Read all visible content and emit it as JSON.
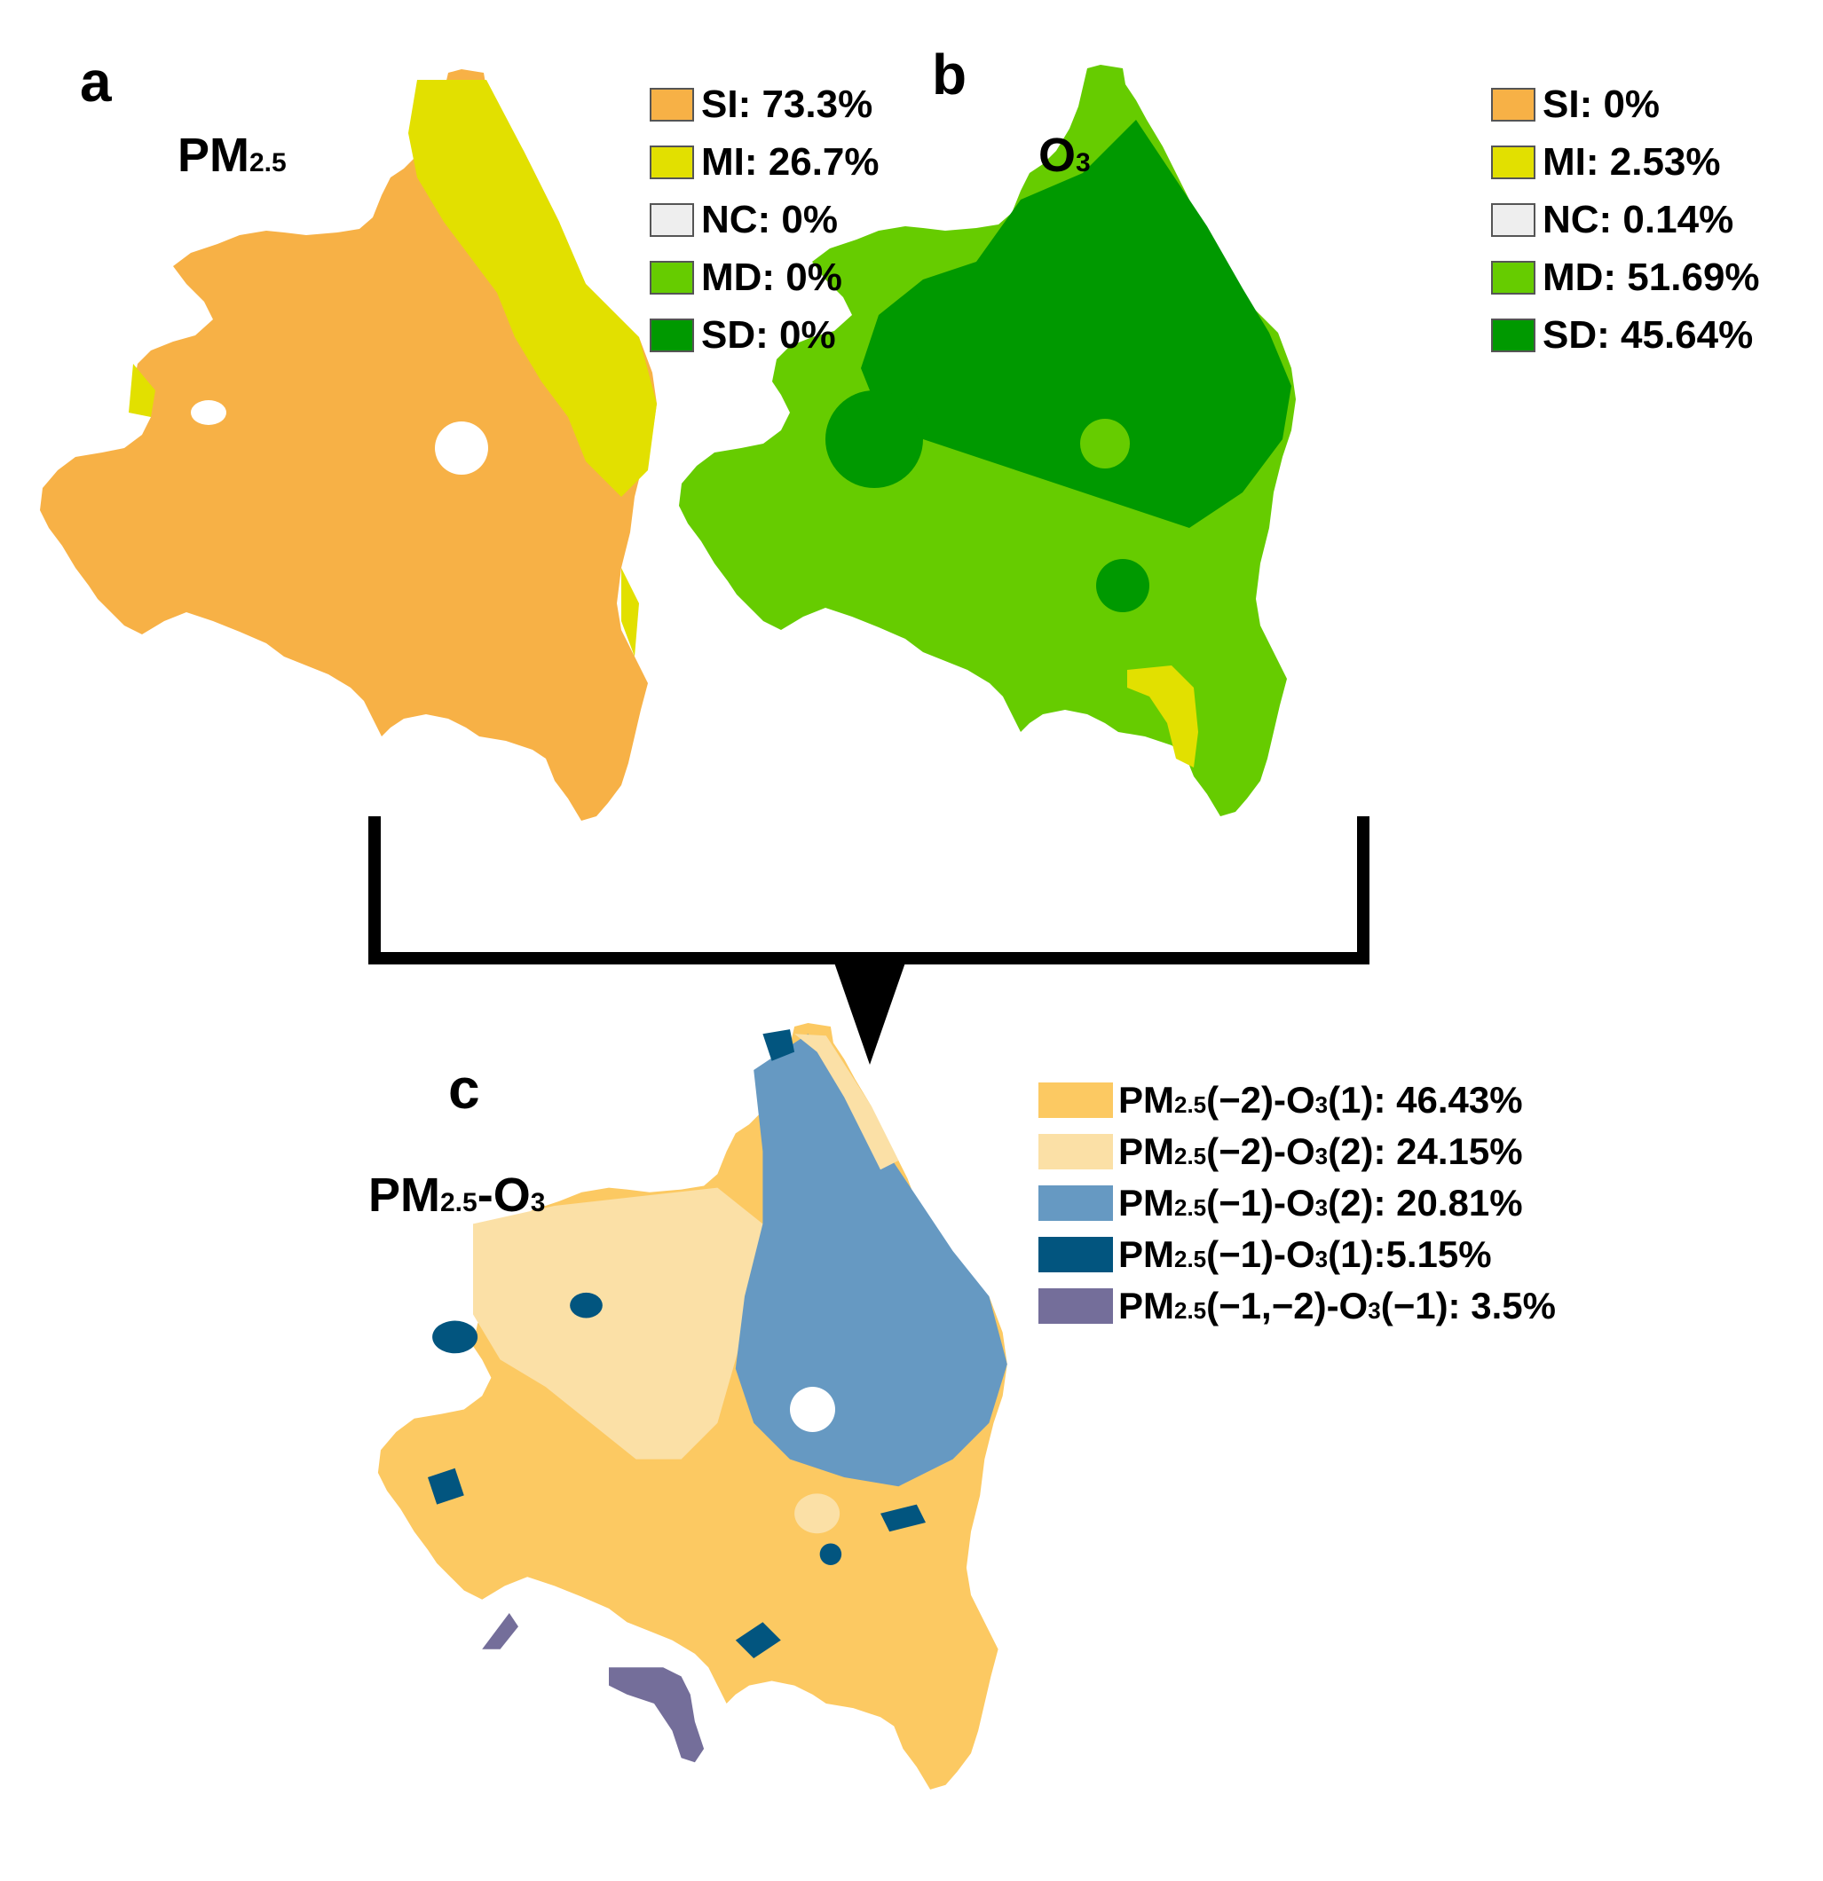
{
  "panels": {
    "a": {
      "letter": "a",
      "title_main": "PM",
      "title_sub": "2.5",
      "legend": [
        {
          "label": "SI: 73.3%",
          "color": "#F7B146"
        },
        {
          "label": "MI: 26.7%",
          "color": "#E2E000"
        },
        {
          "label": "NC: 0%",
          "color": "#EEEEEE"
        },
        {
          "label": "MD: 0%",
          "color": "#66CC00"
        },
        {
          "label": "SD: 0%",
          "color": "#009900"
        }
      ]
    },
    "b": {
      "letter": "b",
      "title_main": "O",
      "title_sub": "3",
      "legend": [
        {
          "label": "SI: 0%",
          "color": "#F7B146"
        },
        {
          "label": "MI: 2.53%",
          "color": "#E2E000"
        },
        {
          "label": "NC: 0.14%",
          "color": "#EEEEEE"
        },
        {
          "label": "MD: 51.69%",
          "color": "#66CC00"
        },
        {
          "label": "SD: 45.64%",
          "color": "#009900"
        }
      ]
    },
    "c": {
      "letter": "c",
      "title_main": "PM",
      "title_sub": "2.5",
      "title_mid": "-O",
      "title_sub2": "3",
      "legend": [
        {
          "pm": "PM",
          "pm_sub": "2.5",
          "mid": "(−2)-O",
          "o_sub": "3",
          "rest": "(1): 46.43%",
          "color": "#FCC962"
        },
        {
          "pm": "PM",
          "pm_sub": "2.5",
          "mid": "(−2)-O",
          "o_sub": "3",
          "rest": "(2): 24.15%",
          "color": "#FBE0A6"
        },
        {
          "pm": "PM",
          "pm_sub": "2.5",
          "mid": "(−1)-O",
          "o_sub": "3",
          "rest": "(2): 20.81%",
          "color": "#6699C2"
        },
        {
          "pm": "PM",
          "pm_sub": "2.5",
          "mid": "(−1)-O",
          "o_sub": "3",
          "rest": "(1):5.15%",
          "color": "#02557F"
        },
        {
          "pm": "PM",
          "pm_sub": "2.5",
          "mid": "(−1,−2)-O",
          "o_sub": "3",
          "rest": "(−1): 3.5%",
          "color": "#746E9A"
        }
      ]
    }
  }
}
